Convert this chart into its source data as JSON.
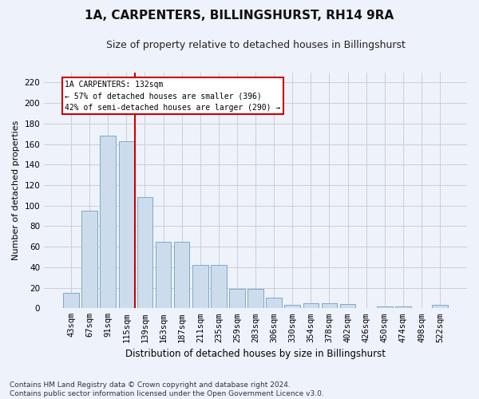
{
  "title": "1A, CARPENTERS, BILLINGSHURST, RH14 9RA",
  "subtitle": "Size of property relative to detached houses in Billingshurst",
  "xlabel": "Distribution of detached houses by size in Billingshurst",
  "ylabel": "Number of detached properties",
  "categories": [
    "43sqm",
    "67sqm",
    "91sqm",
    "115sqm",
    "139sqm",
    "163sqm",
    "187sqm",
    "211sqm",
    "235sqm",
    "259sqm",
    "283sqm",
    "306sqm",
    "330sqm",
    "354sqm",
    "378sqm",
    "402sqm",
    "426sqm",
    "450sqm",
    "474sqm",
    "498sqm",
    "522sqm"
  ],
  "values": [
    15,
    95,
    168,
    163,
    108,
    65,
    65,
    42,
    42,
    19,
    19,
    10,
    3,
    5,
    5,
    4,
    0,
    2,
    2,
    0,
    3
  ],
  "bar_color": "#cddcec",
  "bar_edge_color": "#7aaac8",
  "grid_color": "#c8c8d0",
  "bg_color": "#eef2fa",
  "annotation_line_color": "#cc0000",
  "annotation_box_color": "#ffffff",
  "annotation_box_edge": "#cc0000",
  "annotation_text_line1": "1A CARPENTERS: 132sqm",
  "annotation_text_line2": "← 57% of detached houses are smaller (396)",
  "annotation_text_line3": "42% of semi-detached houses are larger (290) →",
  "footnote_line1": "Contains HM Land Registry data © Crown copyright and database right 2024.",
  "footnote_line2": "Contains public sector information licensed under the Open Government Licence v3.0.",
  "ylim": [
    0,
    230
  ],
  "yticks": [
    0,
    20,
    40,
    60,
    80,
    100,
    120,
    140,
    160,
    180,
    200,
    220
  ],
  "title_fontsize": 11,
  "subtitle_fontsize": 9,
  "axis_label_fontsize": 8,
  "tick_fontsize": 7.5,
  "footnote_fontsize": 6.5,
  "red_line_x": 3.45
}
